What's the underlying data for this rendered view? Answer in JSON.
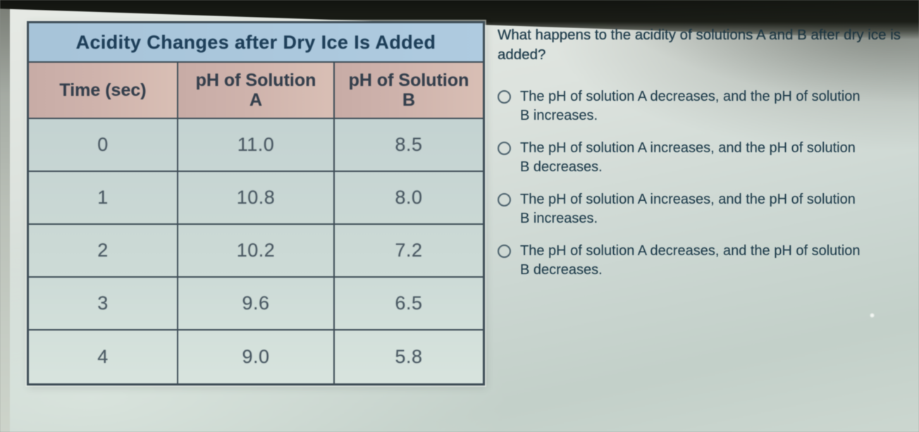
{
  "table": {
    "title": "Acidity Changes after Dry Ice Is Added",
    "headers": [
      "Time (sec)",
      "pH of Solution\nA",
      "pH of Solution\nB"
    ],
    "rows": [
      [
        "0",
        "11.0",
        "8.5"
      ],
      [
        "1",
        "10.8",
        "8.0"
      ],
      [
        "2",
        "10.2",
        "7.2"
      ],
      [
        "3",
        "9.6",
        "6.5"
      ],
      [
        "4",
        "9.0",
        "5.8"
      ]
    ]
  },
  "question": {
    "text": "What happens to the acidity of solutions A and B after dry ice is added?",
    "options": [
      {
        "label": "The pH of solution A decreases, and the pH of solution B increases.",
        "selected": false
      },
      {
        "label": "The pH of solution A increases, and the pH of solution B decreases.",
        "selected": false
      },
      {
        "label": "The pH of solution A increases, and the pH of solution B increases.",
        "selected": false
      },
      {
        "label": "The pH of solution A decreases, and the pH of solution B decreases.",
        "selected": false
      }
    ]
  },
  "colors": {
    "table_title_bg": "#a6c4da",
    "table_header_bg": "#d0b3ab",
    "table_body_bg": "#cddbd7",
    "table_border": "#3c4c56",
    "title_text": "#1d3f5a",
    "question_text": "#1d3c4c"
  }
}
